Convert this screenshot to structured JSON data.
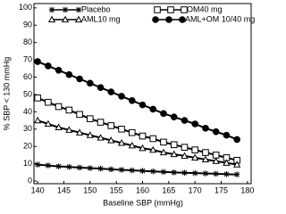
{
  "chart_data": {
    "type": "line",
    "x_label": "Baseline SBP (mmHg)",
    "y_label": "% SBP < 130 mmHg",
    "x": [
      140,
      142,
      144,
      146,
      148,
      150,
      152,
      154,
      156,
      158,
      160,
      162,
      164,
      166,
      168,
      170,
      172,
      174,
      176,
      178
    ],
    "series": [
      {
        "name": "Placebo",
        "color": "#000000",
        "marker": "asterisk",
        "values": [
          9.5,
          9,
          8.5,
          8.2,
          7.8,
          7.5,
          7.2,
          6.8,
          6.5,
          6.2,
          5.9,
          5.6,
          5.3,
          5,
          4.8,
          4.6,
          4.4,
          4.2,
          4,
          3.8
        ]
      },
      {
        "name": "OM40 mg",
        "color": "#000000",
        "marker": "square",
        "values": [
          48,
          45.5,
          43,
          41,
          38.5,
          36,
          34,
          32,
          30,
          28,
          26,
          24.5,
          22.5,
          21,
          19.5,
          18,
          16.5,
          15,
          13.5,
          12
        ]
      },
      {
        "name": "AML10 mg",
        "color": "#000000",
        "marker": "triangle",
        "values": [
          35,
          33,
          31,
          29.5,
          28,
          26.5,
          25,
          23.5,
          22,
          20.5,
          19,
          18,
          16.5,
          15.5,
          14.5,
          13.5,
          12.5,
          11.5,
          10.5,
          9.5
        ]
      },
      {
        "name": "AML+OM 10/40 mg",
        "color": "#000000",
        "marker": "filled-circle",
        "values": [
          69,
          66.5,
          64,
          61.5,
          59,
          56.5,
          54,
          51.5,
          49,
          46.5,
          44,
          41.5,
          39,
          37,
          35,
          33,
          30.5,
          28.5,
          26.5,
          24
        ]
      }
    ],
    "xlim": [
      139.3,
      180.7
    ],
    "ylim": [
      -1.5,
      102.5
    ],
    "xticks": [
      140,
      145,
      150,
      155,
      160,
      165,
      170,
      175,
      180
    ],
    "yticks": [
      0,
      10,
      20,
      30,
      40,
      50,
      60,
      70,
      80,
      90,
      100
    ]
  }
}
